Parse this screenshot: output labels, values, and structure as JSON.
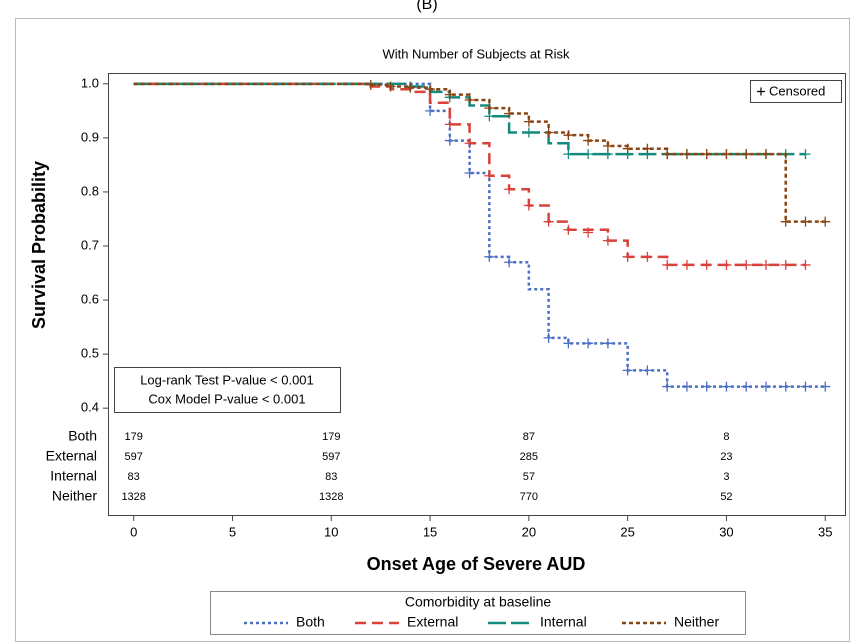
{
  "chart_data": {
    "type": "step",
    "title": "(B)",
    "subtitle": "With Number of Subjects at Risk",
    "x_label": "Onset Age of Severe AUD",
    "y_label": "Survival Probability",
    "xlim": [
      -1.3,
      36
    ],
    "xticks": [
      0,
      5,
      10,
      15,
      20,
      25,
      30,
      35
    ],
    "ylim": [
      0.38,
      1.02
    ],
    "yticks": [
      {
        "value": 0.4,
        "label": "0.4"
      },
      {
        "value": 0.5,
        "label": "0.5"
      },
      {
        "value": 0.6,
        "label": "0.6"
      },
      {
        "value": 0.7,
        "label": "0.7"
      },
      {
        "value": 0.8,
        "label": "0.8"
      },
      {
        "value": 0.9,
        "label": "0.9"
      },
      {
        "value": 1.0,
        "label": "1.0"
      }
    ],
    "censored_label": "Censored",
    "annotations": [
      "Log-rank Test P-value < 0.001",
      "Cox Model P-value < 0.001"
    ],
    "legend_title": "Comorbidity at baseline",
    "at_risk_x": [
      0,
      10,
      20,
      30
    ],
    "series": [
      {
        "name": "Both",
        "color": "#4a6fc4",
        "dash": "3,3",
        "x": [
          0,
          15,
          16,
          17,
          18,
          19,
          20,
          21,
          22,
          25,
          27,
          35
        ],
        "values": [
          1.0,
          0.95,
          0.895,
          0.835,
          0.68,
          0.67,
          0.62,
          0.53,
          0.52,
          0.47,
          0.44,
          0.44
        ],
        "censored_x": [
          15,
          16,
          17,
          18,
          19,
          21,
          22,
          23,
          24,
          25,
          26,
          27,
          28,
          29,
          30,
          31,
          32,
          33,
          34,
          35
        ],
        "censored_values": [
          0.95,
          0.895,
          0.835,
          0.68,
          0.67,
          0.53,
          0.52,
          0.52,
          0.52,
          0.47,
          0.47,
          0.44,
          0.44,
          0.44,
          0.44,
          0.44,
          0.44,
          0.44,
          0.44,
          0.44
        ],
        "at_risk": [
          179,
          179,
          87,
          8
        ]
      },
      {
        "name": "External",
        "color": "#d9413a",
        "dash": "11,6",
        "x": [
          0,
          12,
          13,
          14,
          15,
          16,
          17,
          18,
          19,
          20,
          21,
          22,
          24,
          25,
          27,
          34
        ],
        "values": [
          1.0,
          0.995,
          0.99,
          0.985,
          0.965,
          0.925,
          0.89,
          0.83,
          0.805,
          0.775,
          0.745,
          0.73,
          0.71,
          0.68,
          0.665,
          0.665
        ],
        "censored_x": [
          16,
          17,
          18,
          19,
          20,
          21,
          22,
          23,
          24,
          25,
          26,
          27,
          28,
          29,
          30,
          31,
          32,
          33,
          34
        ],
        "censored_values": [
          0.925,
          0.89,
          0.83,
          0.805,
          0.775,
          0.745,
          0.73,
          0.725,
          0.71,
          0.68,
          0.68,
          0.665,
          0.665,
          0.665,
          0.665,
          0.665,
          0.665,
          0.665,
          0.665
        ],
        "at_risk": [
          597,
          597,
          285,
          23
        ]
      },
      {
        "name": "Internal",
        "color": "#138a7e",
        "dash": "18,5",
        "x": [
          0,
          14,
          15,
          16,
          17,
          18,
          19,
          21,
          22,
          34
        ],
        "values": [
          1.0,
          0.995,
          0.985,
          0.975,
          0.96,
          0.94,
          0.91,
          0.89,
          0.87,
          0.87
        ],
        "censored_x": [
          14,
          16,
          18,
          20,
          22,
          23,
          24,
          25,
          26,
          27,
          28,
          29,
          30,
          31,
          32,
          33,
          34
        ],
        "censored_values": [
          0.995,
          0.975,
          0.94,
          0.91,
          0.87,
          0.87,
          0.87,
          0.87,
          0.87,
          0.87,
          0.87,
          0.87,
          0.87,
          0.87,
          0.87,
          0.87,
          0.87
        ],
        "at_risk": [
          83,
          83,
          57,
          3
        ]
      },
      {
        "name": "Neither",
        "color": "#8b4513",
        "dash": "4,3",
        "x": [
          0,
          12,
          13,
          14,
          15,
          16,
          17,
          18,
          19,
          20,
          21,
          22,
          23,
          24,
          25,
          27,
          33,
          35
        ],
        "values": [
          1.0,
          0.998,
          0.995,
          0.993,
          0.99,
          0.98,
          0.97,
          0.955,
          0.945,
          0.93,
          0.91,
          0.905,
          0.895,
          0.885,
          0.88,
          0.87,
          0.745,
          0.745
        ],
        "censored_x": [
          12,
          13,
          14,
          15,
          16,
          17,
          18,
          19,
          20,
          21,
          22,
          23,
          24,
          25,
          26,
          27,
          28,
          29,
          30,
          31,
          32,
          33,
          34,
          35
        ],
        "censored_values": [
          0.998,
          0.995,
          0.993,
          0.99,
          0.98,
          0.97,
          0.955,
          0.945,
          0.93,
          0.91,
          0.905,
          0.895,
          0.885,
          0.88,
          0.88,
          0.87,
          0.87,
          0.87,
          0.87,
          0.87,
          0.87,
          0.745,
          0.745,
          0.745
        ],
        "at_risk": [
          1328,
          1328,
          770,
          52
        ]
      }
    ]
  }
}
